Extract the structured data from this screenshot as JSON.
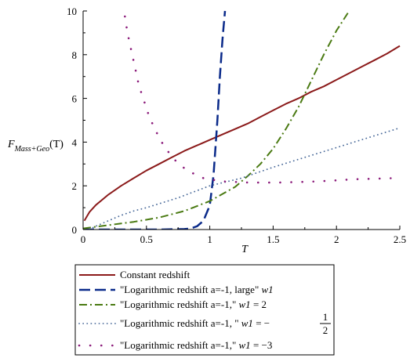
{
  "chart_data": {
    "type": "line",
    "title": "",
    "xlabel": "T",
    "ylabel": {
      "main": "F",
      "sub": "Mass+Geo",
      "arg": "(T)"
    },
    "xlim": [
      0,
      2.5
    ],
    "ylim": [
      0,
      10
    ],
    "x_ticks": [
      0,
      0.5,
      1,
      1.5,
      2,
      2.5
    ],
    "x_tick_labels": [
      "0",
      "0.5",
      "1",
      "1.5",
      "2",
      "2.5"
    ],
    "y_ticks": [
      0,
      2,
      4,
      6,
      8,
      10
    ],
    "y_tick_labels": [
      "0",
      "2",
      "4",
      "6",
      "8",
      "10"
    ],
    "grid": false,
    "legend_position": "bottom",
    "series": [
      {
        "name": "Constant redshift",
        "color": "#8b1a1a",
        "style": "solid",
        "x": [
          0.01,
          0.05,
          0.1,
          0.2,
          0.3,
          0.4,
          0.5,
          0.6,
          0.7,
          0.8,
          0.9,
          1.0,
          1.1,
          1.2,
          1.3,
          1.4,
          1.5,
          1.6,
          1.7,
          1.8,
          1.9,
          2.0,
          2.1,
          2.2,
          2.3,
          2.4,
          2.5
        ],
        "y": [
          0.4,
          0.8,
          1.12,
          1.6,
          2.0,
          2.35,
          2.7,
          3.0,
          3.3,
          3.6,
          3.85,
          4.1,
          4.35,
          4.6,
          4.85,
          5.15,
          5.45,
          5.75,
          6.0,
          6.3,
          6.55,
          6.85,
          7.15,
          7.45,
          7.75,
          8.05,
          8.4
        ]
      },
      {
        "name_parts": [
          "\"Logarithmic redshift a=-1, large\" ",
          "w1",
          ""
        ],
        "color": "#0a2a8a",
        "style": "dash",
        "x": [
          0.0,
          0.2,
          0.4,
          0.6,
          0.8,
          0.85,
          0.9,
          0.95,
          1.0,
          1.03,
          1.06,
          1.08,
          1.1,
          1.12
        ],
        "y": [
          0.0,
          0.0,
          0.0,
          0.0,
          0.02,
          0.05,
          0.15,
          0.4,
          1.1,
          2.5,
          5.0,
          7.0,
          8.7,
          10.0
        ]
      },
      {
        "name_parts": [
          "\"Logarithmic redshift a=-1,\" ",
          "w1",
          " = 2"
        ],
        "color": "#4a7a12",
        "style": "dashdot",
        "x": [
          0.0,
          0.2,
          0.4,
          0.6,
          0.8,
          1.0,
          1.2,
          1.3,
          1.4,
          1.5,
          1.6,
          1.7,
          1.8,
          1.9,
          2.0,
          2.1
        ],
        "y": [
          0.05,
          0.2,
          0.35,
          0.55,
          0.85,
          1.3,
          1.95,
          2.45,
          3.0,
          3.7,
          4.6,
          5.6,
          6.8,
          8.0,
          9.1,
          10.0
        ]
      },
      {
        "name_parts": [
          "\"Logarithmic redshift a=-1, \" ",
          "w1",
          " = −",
          "1",
          "2"
        ],
        "color": "#4a6a9a",
        "style": "dot",
        "x": [
          0.05,
          0.1,
          0.2,
          0.3,
          0.4,
          0.5,
          0.75,
          1.0,
          1.25,
          1.5,
          1.75,
          2.0,
          2.25,
          2.5
        ],
        "y": [
          0.0,
          0.15,
          0.4,
          0.65,
          0.85,
          1.0,
          1.45,
          2.0,
          2.35,
          2.85,
          3.3,
          3.75,
          4.2,
          4.65
        ]
      },
      {
        "name_parts": [
          "\"Logarithmic redshift a=-1,\" ",
          "w1",
          " = −3"
        ],
        "color": "#8b1a7a",
        "style": "sparse-dot",
        "x": [
          0.33,
          0.35,
          0.38,
          0.41,
          0.44,
          0.48,
          0.52,
          0.57,
          0.64,
          0.72,
          0.82,
          0.95,
          1.1,
          1.3,
          1.55,
          1.85,
          2.15,
          2.45
        ],
        "y": [
          9.75,
          9.0,
          8.2,
          7.4,
          6.6,
          5.9,
          5.2,
          4.55,
          3.8,
          3.2,
          2.7,
          2.35,
          2.2,
          2.15,
          2.15,
          2.2,
          2.3,
          2.35
        ]
      }
    ]
  }
}
